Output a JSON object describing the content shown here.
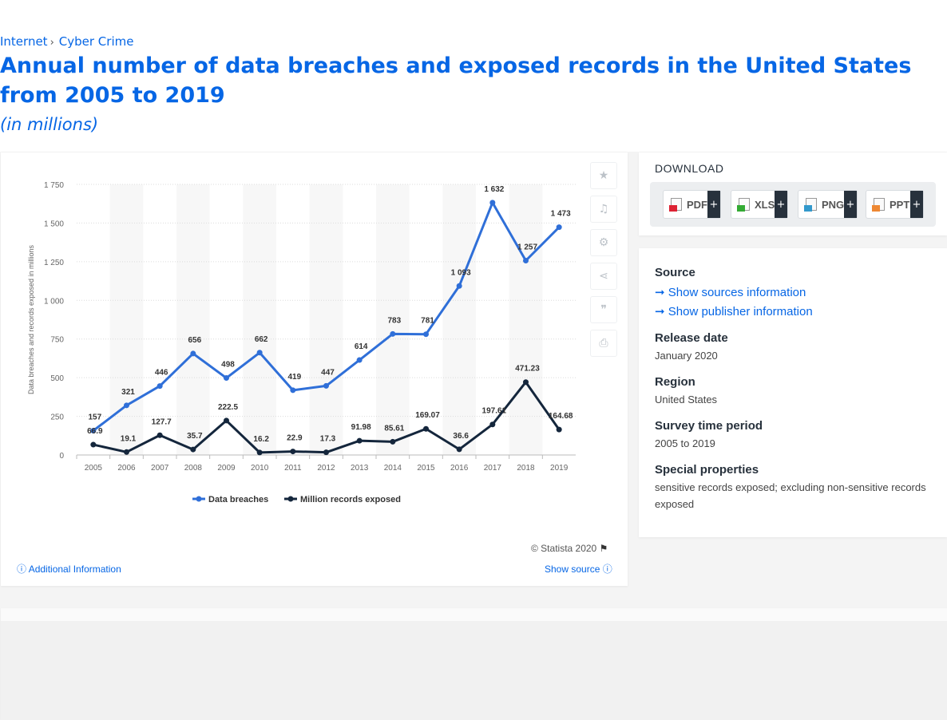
{
  "breadcrumb": {
    "item1": "Internet",
    "item2": "Cyber Crime"
  },
  "page": {
    "title": "Annual number of data breaches and exposed records in the United States from 2005 to 2019",
    "subtitle": "(in millions)"
  },
  "chart_data": {
    "type": "line",
    "title": "Annual number of data breaches and exposed records in the United States from 2005 to 2019",
    "ylabel": "Data breaches and records exposed in millions",
    "xlabel": "",
    "ylim": [
      0,
      1750
    ],
    "yticks": [
      "0",
      "250",
      "500",
      "750",
      "1 000",
      "1 250",
      "1 500",
      "1 750"
    ],
    "ytick_values": [
      0,
      250,
      500,
      750,
      1000,
      1250,
      1500,
      1750
    ],
    "categories": [
      "2005",
      "2006",
      "2007",
      "2008",
      "2009",
      "2010",
      "2011",
      "2012",
      "2013",
      "2014",
      "2015",
      "2016",
      "2017",
      "2018",
      "2019"
    ],
    "series": [
      {
        "name": "Data breaches",
        "color": "#2f6fd8",
        "values": [
          157,
          321,
          446,
          656,
          498,
          662,
          419,
          447,
          614,
          783,
          781,
          1093,
          1632,
          1257,
          1473
        ],
        "labels": [
          "157",
          "321",
          "446",
          "656",
          "498",
          "662",
          "419",
          "447",
          "614",
          "783",
          "781",
          "1 093",
          "1 632",
          "1 257",
          "1 473"
        ]
      },
      {
        "name": "Million records exposed",
        "color": "#14263c",
        "values": [
          66.9,
          19.1,
          127.7,
          35.7,
          222.5,
          16.2,
          22.9,
          17.3,
          91.98,
          85.61,
          169.07,
          36.6,
          197.61,
          471.23,
          164.68
        ],
        "labels": [
          "66.9",
          "19.1",
          "127.7",
          "35.7",
          "222.5",
          "16.2",
          "22.9",
          "17.3",
          "91.98",
          "85.61",
          "169.07",
          "36.6",
          "197.61",
          "471.23",
          "164.68"
        ]
      }
    ],
    "grid": true,
    "legend_position": "bottom"
  },
  "chart_footer": {
    "copyright": "© Statista 2020",
    "additional_info": "Additional Information",
    "show_source": "Show source"
  },
  "download": {
    "title": "DOWNLOAD",
    "buttons": [
      {
        "label": "PDF",
        "plus": "+"
      },
      {
        "label": "XLS",
        "plus": "+"
      },
      {
        "label": "PNG",
        "plus": "+"
      },
      {
        "label": "PPT",
        "plus": "+"
      }
    ]
  },
  "info": {
    "source_heading": "Source",
    "show_sources": "Show sources information",
    "show_publisher": "Show publisher information",
    "release_heading": "Release date",
    "release_value": "January 2020",
    "region_heading": "Region",
    "region_value": "United States",
    "survey_heading": "Survey time period",
    "survey_value": "2005 to 2019",
    "special_heading": "Special properties",
    "special_value": "sensitive records exposed; excluding non-sensitive records exposed"
  }
}
